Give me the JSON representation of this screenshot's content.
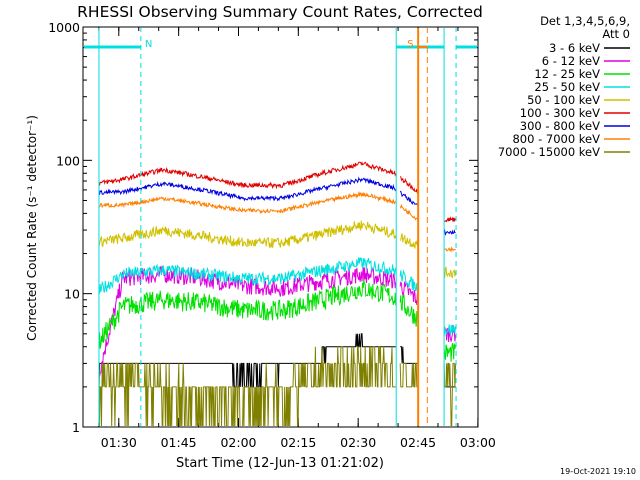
{
  "chart_data": {
    "type": "line",
    "title": "RHESSI Observing Summary Count Rates, Corrected",
    "xlabel": "Start Time (12-Jun-13 01:21:02)",
    "ylabel": "Corrected Count Rate (s⁻¹ detector⁻¹)",
    "yscale": "log",
    "ylim": [
      1,
      1000
    ],
    "xlim_minutes": [
      0,
      99
    ],
    "x_ticks": [
      {
        "label": "01:30",
        "minutes": 8.97
      },
      {
        "label": "01:45",
        "minutes": 23.97
      },
      {
        "label": "02:00",
        "minutes": 38.97
      },
      {
        "label": "02:15",
        "minutes": 53.97
      },
      {
        "label": "02:30",
        "minutes": 68.97
      },
      {
        "label": "02:45",
        "minutes": 83.97
      },
      {
        "label": "03:00",
        "minutes": 98.97
      }
    ],
    "y_ticks": [
      {
        "label": "1",
        "value": 1
      },
      {
        "label": "10",
        "value": 10
      },
      {
        "label": "100",
        "value": 100
      },
      {
        "label": "1000",
        "value": 1000
      }
    ],
    "legend_header": [
      "Det 1,3,4,5,6,9,",
      "Att 0"
    ],
    "series": [
      {
        "name": "3 - 6 keV",
        "color": "#000000",
        "x": [
          2,
          10,
          20,
          30,
          40,
          50,
          60,
          70,
          78,
          84,
          88
        ],
        "values": [
          2.5,
          2.8,
          3.2,
          3.0,
          2.5,
          2.6,
          3.5,
          4.5,
          3.8,
          2.8,
          2.0
        ]
      },
      {
        "name": "6 - 12 keV",
        "color": "#e000e0",
        "x": [
          2,
          10,
          20,
          30,
          40,
          50,
          60,
          70,
          78,
          84,
          88
        ],
        "values": [
          1.5,
          13,
          14,
          13,
          11.5,
          11,
          12.5,
          14,
          12.5,
          9,
          7
        ]
      },
      {
        "name": "12 - 25 keV",
        "color": "#00e000",
        "x": [
          2,
          10,
          20,
          30,
          40,
          50,
          60,
          70,
          78,
          84,
          88
        ],
        "values": [
          3.5,
          8,
          9,
          8.5,
          7.5,
          7.5,
          9,
          11,
          9.5,
          6.5,
          5
        ]
      },
      {
        "name": "25 - 50 keV",
        "color": "#00e0e0",
        "x": [
          2,
          10,
          20,
          30,
          40,
          50,
          60,
          70,
          78,
          84,
          88
        ],
        "values": [
          9.5,
          14,
          15,
          14,
          13,
          13,
          15,
          17,
          15,
          11,
          7.5
        ]
      },
      {
        "name": "50 - 100 keV",
        "color": "#d0c000",
        "x": [
          2,
          10,
          20,
          30,
          40,
          50,
          60,
          70,
          78,
          84,
          88
        ],
        "values": [
          24,
          26,
          30,
          27,
          24,
          24,
          28,
          33,
          28,
          23,
          20
        ]
      },
      {
        "name": "100 - 300 keV",
        "color": "#e00000",
        "x": [
          2,
          10,
          20,
          30,
          40,
          50,
          60,
          70,
          78,
          84,
          88
        ],
        "values": [
          66,
          72,
          85,
          75,
          65,
          65,
          80,
          95,
          80,
          58,
          50
        ]
      },
      {
        "name": "300 - 800 keV",
        "color": "#0000e0",
        "x": [
          2,
          10,
          20,
          30,
          40,
          50,
          60,
          70,
          78,
          84,
          88
        ],
        "values": [
          57,
          58,
          67,
          60,
          52,
          52,
          62,
          72,
          62,
          45,
          40
        ]
      },
      {
        "name": "800 - 7000 keV",
        "color": "#ff8000",
        "x": [
          2,
          10,
          20,
          30,
          40,
          50,
          60,
          70,
          78,
          84,
          88
        ],
        "values": [
          46,
          46,
          52,
          47,
          42,
          42,
          49,
          56,
          49,
          36,
          30
        ]
      },
      {
        "name": "7000 - 15000 keV",
        "color": "#808000",
        "x": [
          2,
          10,
          20,
          30,
          40,
          50,
          60,
          70,
          78,
          84,
          88
        ],
        "values": [
          2.0,
          2.2,
          1.8,
          1.5,
          1.6,
          1.8,
          2.4,
          2.8,
          2.5,
          2.2,
          2.0
        ]
      }
    ],
    "annotations": [
      {
        "label": "N",
        "x_minutes": 14.5,
        "color": "#00e0e0"
      },
      {
        "label": "S",
        "x_minutes": 84.0,
        "color": "#ff8000"
      }
    ],
    "footer_timestamp": "19-Oct-2021 19:10"
  }
}
